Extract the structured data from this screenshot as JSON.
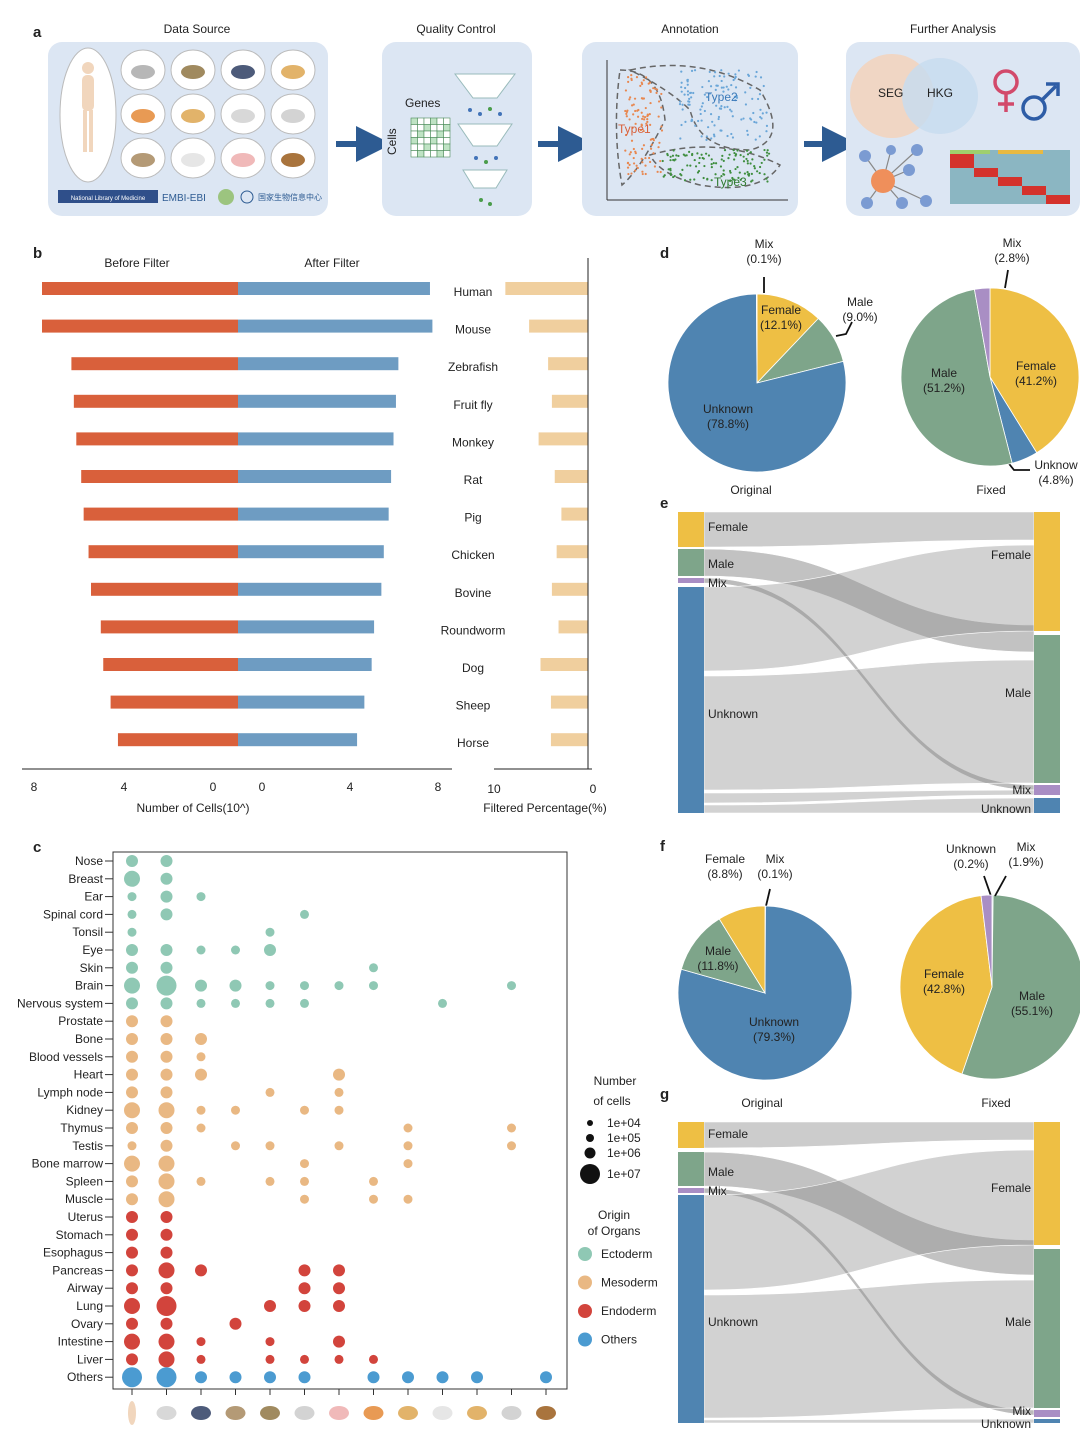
{
  "panel_a": {
    "letter": "a",
    "titles": [
      "Data Source",
      "Quality Control",
      "Annotation",
      "Further Analysis"
    ],
    "qc": {
      "genes_label": "Genes",
      "cells_label": "Cells"
    },
    "annotation": {
      "type1": "Type1",
      "type2": "Type2",
      "type3": "Type3"
    },
    "further": {
      "seg": "SEG",
      "hkg": "HKG"
    },
    "logos": {
      "nih": "National Library of Medicine",
      "embl": "EMBI-EBI",
      "ngdc": "国家生物信息中心"
    }
  },
  "panel_b": {
    "letter": "b",
    "headers": {
      "before": "Before Filter",
      "after": "After Filter"
    },
    "xlabel": "Number of Cells(10^)",
    "xlabel_right": "Filtered Percentage(%)",
    "ticks_left": [
      "8",
      "4",
      "0"
    ],
    "ticks_right": [
      "0",
      "4",
      "8"
    ],
    "ticks_pct": [
      "10",
      "0"
    ]
  },
  "panel_c": {
    "letter": "c",
    "legend": {
      "size_title": [
        "Number",
        "of cells"
      ],
      "size_labels": [
        "1e+04",
        "1e+05",
        "1e+06",
        "1e+07"
      ],
      "origin_title": [
        "Origin",
        "of Organs"
      ],
      "origin_labels": [
        "Ectoderm",
        "Mesoderm",
        "Endoderm",
        "Others"
      ]
    }
  },
  "panel_d": {
    "letter": "d",
    "original_label": "Original",
    "fixed_label": "Fixed",
    "original_slices": [
      {
        "name": "Female",
        "pct": "(12.1%)",
        "value": 12.1
      },
      {
        "name": "Male",
        "pct": "(9.0%)",
        "value": 9.0
      },
      {
        "name": "Unknown",
        "pct": "(78.8%)",
        "value": 78.8
      },
      {
        "name": "Mix",
        "pct": "(0.1%)",
        "value": 0.1
      }
    ],
    "fixed_slices": [
      {
        "name": "Female",
        "pct": "(41.2%)",
        "value": 41.2
      },
      {
        "name": "Unknow",
        "pct": "(4.8%)",
        "value": 4.8
      },
      {
        "name": "Male",
        "pct": "(51.2%)",
        "value": 51.2
      },
      {
        "name": "Mix",
        "pct": "(2.8%)",
        "value": 2.8
      }
    ]
  },
  "panel_e": {
    "letter": "e",
    "left": [
      "Female",
      "Male",
      "Mix",
      "Unknown"
    ],
    "right": [
      "Female",
      "Male",
      "Mix",
      "Unknown"
    ]
  },
  "panel_f": {
    "letter": "f",
    "original_slices": [
      {
        "name": "Mix",
        "pct": "(0.1%)",
        "value": 0.1
      },
      {
        "name": "Unknown",
        "pct": "(79.3%)",
        "value": 79.3
      },
      {
        "name": "Male",
        "pct": "(11.8%)",
        "value": 11.8
      },
      {
        "name": "Female",
        "pct": "(8.8%)",
        "value": 8.8
      }
    ],
    "fixed_slices": [
      {
        "name": "Unknown",
        "pct": "(0.2%)",
        "value": 0.2
      },
      {
        "name": "Male",
        "pct": "(55.1%)",
        "value": 55.1
      },
      {
        "name": "Female",
        "pct": "(42.8%)",
        "value": 42.8
      },
      {
        "name": "Mix",
        "pct": "(1.9%)",
        "value": 1.9
      }
    ]
  },
  "panel_g": {
    "letter": "g",
    "original_label": "Original",
    "fixed_label": "Fixed",
    "left": [
      "Female",
      "Male",
      "Mix",
      "Unknown"
    ],
    "right": [
      "Female",
      "Male",
      "Mix",
      "Unknown"
    ]
  },
  "colors": {
    "before": "#d9603b",
    "after": "#6e9cc2",
    "filtered": "#f0cf9e",
    "female": "#eebf44",
    "male": "#7ea58a",
    "unknown": "#4f84b1",
    "mix": "#a98ec4",
    "ecto": "#8fc8b4",
    "meso": "#e9b883",
    "endo": "#d2443c",
    "others": "#4b9bd1"
  },
  "chart_data": [
    {
      "type": "bar",
      "panel": "b",
      "categories": [
        "Human",
        "Mouse",
        "Zebrafish",
        "Fruit fly",
        "Monkey",
        "Rat",
        "Pig",
        "Chicken",
        "Bovine",
        "Roundworm",
        "Dog",
        "Sheep",
        "Horse"
      ],
      "series": [
        {
          "name": "Before Filter",
          "values": [
            8.0,
            8.0,
            6.8,
            6.7,
            6.6,
            6.4,
            6.3,
            6.1,
            6.0,
            5.6,
            5.5,
            5.2,
            4.9
          ]
        },
        {
          "name": "After Filter",
          "values": [
            7.9,
            8.0,
            6.6,
            6.5,
            6.4,
            6.3,
            6.2,
            6.0,
            5.9,
            5.6,
            5.5,
            5.2,
            4.9
          ]
        }
      ],
      "filtered_percentage": [
        8.7,
        6.2,
        4.2,
        3.8,
        5.2,
        3.5,
        2.8,
        3.3,
        3.8,
        3.1,
        5.0,
        3.9,
        3.9
      ],
      "xlabel": "Number of Cells(10^)",
      "xlim": [
        0,
        8
      ]
    },
    {
      "type": "scatter",
      "panel": "c",
      "organs": [
        "Nose",
        "Breast",
        "Ear",
        "Spinal cord",
        "Tonsil",
        "Eye",
        "Skin",
        "Brain",
        "Nervous system",
        "Prostate",
        "Bone",
        "Blood vessels",
        "Heart",
        "Lymph node",
        "Kidney",
        "Thymus",
        "Testis",
        "Bone marrow",
        "Spleen",
        "Muscle",
        "Uterus",
        "Stomach",
        "Esophagus",
        "Pancreas",
        "Airway",
        "Lung",
        "Ovary",
        "Intestine",
        "Liver",
        "Others"
      ],
      "species": [
        "Human",
        "Mouse",
        "Zebrafish",
        "Fruit fly",
        "Monkey",
        "Rat",
        "Pig",
        "Chicken",
        "Bovine",
        "Roundworm",
        "Dog",
        "Sheep",
        "Horse"
      ],
      "origin": [
        "ecto",
        "ecto",
        "ecto",
        "ecto",
        "ecto",
        "ecto",
        "ecto",
        "ecto",
        "ecto",
        "meso",
        "meso",
        "meso",
        "meso",
        "meso",
        "meso",
        "meso",
        "meso",
        "meso",
        "meso",
        "meso",
        "endo",
        "endo",
        "endo",
        "endo",
        "endo",
        "endo",
        "endo",
        "endo",
        "endo",
        "others"
      ],
      "points": [
        [
          0,
          0,
          5
        ],
        [
          0,
          1,
          5
        ],
        [
          1,
          0,
          6
        ],
        [
          1,
          1,
          5
        ],
        [
          2,
          0,
          4
        ],
        [
          2,
          1,
          5
        ],
        [
          2,
          2,
          4
        ],
        [
          3,
          0,
          4
        ],
        [
          3,
          1,
          5
        ],
        [
          3,
          5,
          4
        ],
        [
          4,
          0,
          4
        ],
        [
          4,
          4,
          4
        ],
        [
          5,
          0,
          5
        ],
        [
          5,
          1,
          5
        ],
        [
          5,
          2,
          4
        ],
        [
          5,
          3,
          4
        ],
        [
          5,
          4,
          5
        ],
        [
          6,
          0,
          5
        ],
        [
          6,
          1,
          5
        ],
        [
          6,
          7,
          4
        ],
        [
          7,
          0,
          6
        ],
        [
          7,
          1,
          7
        ],
        [
          7,
          2,
          5
        ],
        [
          7,
          3,
          5
        ],
        [
          7,
          4,
          4
        ],
        [
          7,
          5,
          4
        ],
        [
          7,
          6,
          4
        ],
        [
          7,
          7,
          4
        ],
        [
          7,
          11,
          4
        ],
        [
          8,
          0,
          5
        ],
        [
          8,
          1,
          5
        ],
        [
          8,
          2,
          4
        ],
        [
          8,
          3,
          4
        ],
        [
          8,
          4,
          4
        ],
        [
          8,
          5,
          4
        ],
        [
          8,
          9,
          4
        ],
        [
          9,
          0,
          5
        ],
        [
          9,
          1,
          5
        ],
        [
          10,
          0,
          5
        ],
        [
          10,
          1,
          5
        ],
        [
          10,
          2,
          5
        ],
        [
          11,
          0,
          5
        ],
        [
          11,
          1,
          5
        ],
        [
          11,
          2,
          4
        ],
        [
          12,
          0,
          5
        ],
        [
          12,
          1,
          5
        ],
        [
          12,
          2,
          5
        ],
        [
          12,
          6,
          5
        ],
        [
          13,
          0,
          5
        ],
        [
          13,
          1,
          5
        ],
        [
          13,
          4,
          4
        ],
        [
          13,
          6,
          4
        ],
        [
          14,
          0,
          6
        ],
        [
          14,
          1,
          6
        ],
        [
          14,
          2,
          4
        ],
        [
          14,
          3,
          4
        ],
        [
          14,
          5,
          4
        ],
        [
          14,
          6,
          4
        ],
        [
          15,
          0,
          5
        ],
        [
          15,
          1,
          5
        ],
        [
          15,
          2,
          4
        ],
        [
          15,
          8,
          4
        ],
        [
          15,
          11,
          4
        ],
        [
          16,
          0,
          4
        ],
        [
          16,
          1,
          5
        ],
        [
          16,
          3,
          4
        ],
        [
          16,
          4,
          4
        ],
        [
          16,
          6,
          4
        ],
        [
          16,
          8,
          4
        ],
        [
          16,
          11,
          4
        ],
        [
          17,
          0,
          6
        ],
        [
          17,
          1,
          6
        ],
        [
          17,
          5,
          4
        ],
        [
          17,
          8,
          4
        ],
        [
          18,
          0,
          5
        ],
        [
          18,
          1,
          6
        ],
        [
          18,
          2,
          4
        ],
        [
          18,
          4,
          4
        ],
        [
          18,
          5,
          4
        ],
        [
          18,
          7,
          4
        ],
        [
          19,
          0,
          5
        ],
        [
          19,
          1,
          6
        ],
        [
          19,
          5,
          4
        ],
        [
          19,
          7,
          4
        ],
        [
          19,
          8,
          4
        ],
        [
          20,
          0,
          5
        ],
        [
          20,
          1,
          5
        ],
        [
          21,
          0,
          5
        ],
        [
          21,
          1,
          5
        ],
        [
          22,
          0,
          5
        ],
        [
          22,
          1,
          5
        ],
        [
          23,
          0,
          5
        ],
        [
          23,
          1,
          6
        ],
        [
          23,
          2,
          5
        ],
        [
          23,
          5,
          5
        ],
        [
          23,
          6,
          5
        ],
        [
          24,
          0,
          5
        ],
        [
          24,
          1,
          5
        ],
        [
          24,
          5,
          5
        ],
        [
          24,
          6,
          5
        ],
        [
          25,
          0,
          6
        ],
        [
          25,
          1,
          7
        ],
        [
          25,
          4,
          5
        ],
        [
          25,
          5,
          5
        ],
        [
          25,
          6,
          5
        ],
        [
          26,
          0,
          5
        ],
        [
          26,
          1,
          5
        ],
        [
          26,
          3,
          5
        ],
        [
          27,
          0,
          6
        ],
        [
          27,
          1,
          6
        ],
        [
          27,
          2,
          4
        ],
        [
          27,
          4,
          4
        ],
        [
          27,
          6,
          5
        ],
        [
          28,
          0,
          5
        ],
        [
          28,
          1,
          6
        ],
        [
          28,
          2,
          4
        ],
        [
          28,
          4,
          4
        ],
        [
          28,
          5,
          4
        ],
        [
          28,
          6,
          4
        ],
        [
          28,
          7,
          4
        ],
        [
          29,
          0,
          7
        ],
        [
          29,
          1,
          7
        ],
        [
          29,
          2,
          5
        ],
        [
          29,
          3,
          5
        ],
        [
          29,
          4,
          5
        ],
        [
          29,
          5,
          5
        ],
        [
          29,
          7,
          5
        ],
        [
          29,
          8,
          5
        ],
        [
          29,
          9,
          5
        ],
        [
          29,
          10,
          5
        ],
        [
          29,
          12,
          5
        ]
      ]
    },
    {
      "type": "pie",
      "panel": "d",
      "names": [
        "Original",
        "Fixed"
      ]
    }
  ]
}
